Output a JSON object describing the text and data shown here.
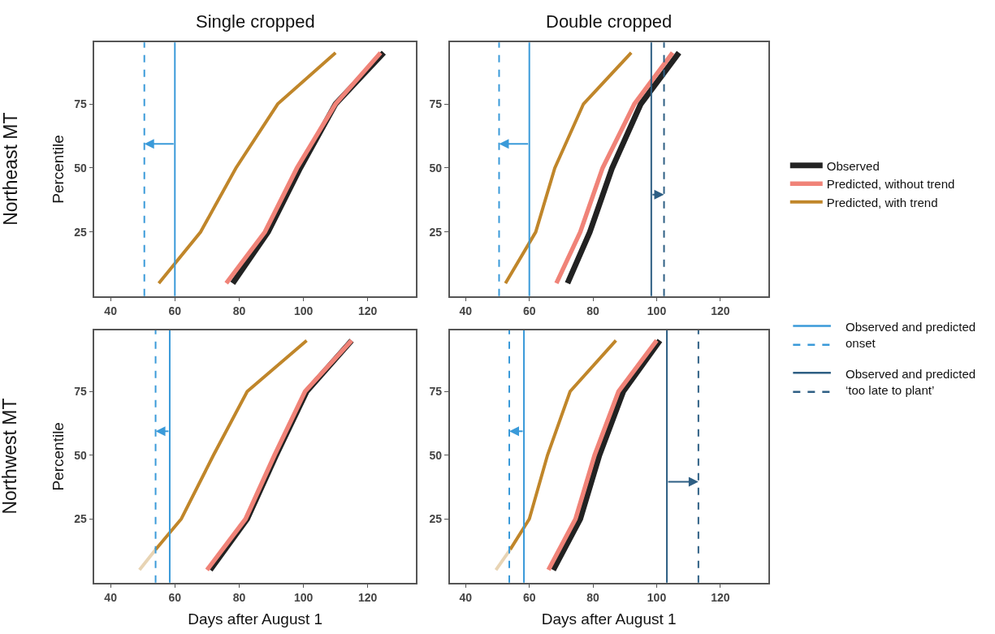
{
  "chart_data": [
    {
      "type": "line",
      "title": "Single cropped",
      "ylabel": "Percentile",
      "annotations": [
        "Northeast MT"
      ],
      "xlim": [
        35,
        135
      ],
      "ylim": [
        0,
        99
      ],
      "xticks": [
        40,
        60,
        80,
        100,
        120
      ],
      "yticks": [
        25,
        50,
        75
      ],
      "legend": "right",
      "series": [
        {
          "name": "Observed",
          "color": "#222222",
          "x": [
            78,
            89,
            99,
            110,
            125
          ],
          "values": [
            5,
            25,
            50,
            75,
            95
          ]
        },
        {
          "name": "Predicted, without trend",
          "color": "#f08378",
          "x": [
            76,
            88,
            98,
            110,
            124
          ],
          "values": [
            5,
            25,
            50,
            75,
            95
          ]
        },
        {
          "name": "Predicted, with trend",
          "color": "#c0862a",
          "x": [
            55,
            68,
            79,
            92,
            110
          ],
          "values": [
            5,
            25,
            50,
            75,
            95
          ]
        }
      ],
      "ref_lines": [
        {
          "axis": "x",
          "value": 60,
          "color": "#3a9ad9",
          "line_style": "solid",
          "label": "Observed and predicted onset"
        },
        {
          "axis": "x",
          "value": 50.5,
          "color": "#3a9ad9",
          "line_style": "dashed"
        }
      ]
    },
    {
      "type": "line",
      "title": "Double cropped",
      "xlim": [
        35,
        135
      ],
      "ylim": [
        0,
        99
      ],
      "xticks": [
        40,
        60,
        80,
        100,
        120
      ],
      "yticks": [
        25,
        50,
        75
      ],
      "series": [
        {
          "color": "#222222",
          "x": [
            72,
            79,
            86,
            95,
            107
          ],
          "values": [
            5,
            25,
            50,
            75,
            95
          ]
        },
        {
          "color": "#f08378",
          "x": [
            68.5,
            76,
            83,
            93,
            105
          ],
          "values": [
            5,
            25,
            50,
            75,
            95
          ]
        },
        {
          "color": "#c0862a",
          "x": [
            52.5,
            62,
            68,
            77,
            92
          ],
          "values": [
            5,
            25,
            50,
            75,
            95
          ]
        }
      ],
      "ref_lines": [
        {
          "axis": "x",
          "value": 60,
          "color": "#3a9ad9",
          "line_style": "solid"
        },
        {
          "axis": "x",
          "value": 50.5,
          "color": "#3a9ad9",
          "line_style": "dashed"
        },
        {
          "axis": "x",
          "value": 98.3,
          "color": "#2e5f84",
          "line_style": "solid",
          "label": "Observed and predicted ‘too late to plant’"
        },
        {
          "axis": "x",
          "value": 102.3,
          "color": "#2e5f84",
          "line_style": "dashed"
        }
      ]
    },
    {
      "type": "line",
      "xlabel": "Days after August 1",
      "ylabel": "Percentile",
      "annotations": [
        "Northwest MT"
      ],
      "xlim": [
        35,
        135
      ],
      "ylim": [
        0,
        99
      ],
      "xticks": [
        40,
        60,
        80,
        100,
        120
      ],
      "yticks": [
        25,
        50,
        75
      ],
      "series": [
        {
          "color": "#222222",
          "x": [
            71,
            82.5,
            91.5,
            101,
            115
          ],
          "values": [
            5,
            25,
            50,
            75,
            95
          ]
        },
        {
          "color": "#f08378",
          "x": [
            70,
            82,
            91,
            100.5,
            115
          ],
          "values": [
            5,
            25,
            50,
            75,
            95
          ]
        },
        {
          "color": "#e8d4b4",
          "x": [
            49,
            54
          ],
          "values": [
            5,
            13
          ]
        },
        {
          "color": "#c0862a",
          "x": [
            54,
            62,
            72,
            82.5,
            101
          ],
          "values": [
            13,
            25,
            50,
            75,
            95
          ]
        }
      ],
      "ref_lines": [
        {
          "axis": "x",
          "value": 58.4,
          "color": "#3a9ad9",
          "line_style": "solid"
        },
        {
          "axis": "x",
          "value": 54,
          "color": "#3a9ad9",
          "line_style": "dashed"
        }
      ]
    },
    {
      "type": "line",
      "xlabel": "Days after August 1",
      "xlim": [
        35,
        135
      ],
      "ylim": [
        0,
        99
      ],
      "xticks": [
        40,
        60,
        80,
        100,
        120
      ],
      "yticks": [
        25,
        50,
        75
      ],
      "series": [
        {
          "color": "#222222",
          "x": [
            67.5,
            76,
            82,
            89.5,
            101
          ],
          "values": [
            5,
            25,
            50,
            75,
            95
          ]
        },
        {
          "color": "#f08378",
          "x": [
            66,
            74.5,
            80.5,
            88,
            100
          ],
          "values": [
            5,
            25,
            50,
            75,
            95
          ]
        },
        {
          "color": "#e8d4b4",
          "x": [
            49.5,
            54
          ],
          "values": [
            5,
            13
          ]
        },
        {
          "color": "#c0862a",
          "x": [
            54,
            60,
            65.7,
            72.8,
            87.2
          ],
          "values": [
            13,
            25,
            50,
            75,
            95
          ]
        }
      ],
      "ref_lines": [
        {
          "axis": "x",
          "value": 58.3,
          "color": "#3a9ad9",
          "line_style": "solid"
        },
        {
          "axis": "x",
          "value": 53.7,
          "color": "#3a9ad9",
          "line_style": "dashed"
        },
        {
          "axis": "x",
          "value": 103.2,
          "color": "#2e5f84",
          "line_style": "solid"
        },
        {
          "axis": "x",
          "value": 113.1,
          "color": "#2e5f84",
          "line_style": "dashed"
        }
      ]
    }
  ]
}
